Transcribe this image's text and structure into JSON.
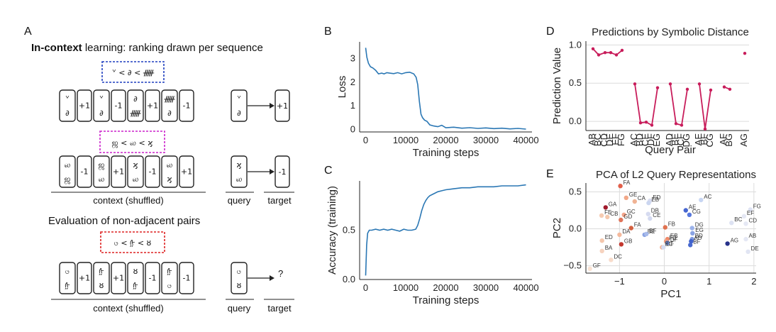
{
  "panel_a": {
    "letter": "A",
    "heading_bold": "In-context",
    "heading_rest": " learning: ranking drawn per sequence",
    "seq1": {
      "ranking": "ᘁ < ∂ < ᚏ",
      "cards": [
        {
          "top": "ᘁ",
          "bottom": "∂",
          "kind": "pair"
        },
        {
          "text": "+1",
          "kind": "label"
        },
        {
          "top": "ᘁ",
          "bottom": "∂",
          "kind": "pair"
        },
        {
          "text": "-1",
          "kind": "label"
        },
        {
          "top": "∂",
          "bottom": "ᚏ",
          "kind": "pair"
        },
        {
          "text": "+1",
          "kind": "label"
        },
        {
          "top": "ᚏ",
          "bottom": "∂",
          "kind": "pair"
        },
        {
          "text": "-1",
          "kind": "label"
        }
      ],
      "query_top": "ᘁ",
      "query_bottom": "∂",
      "target": "+1"
    },
    "seq2": {
      "ranking": "ஜ < ல < ϗ",
      "cards": [
        {
          "top": "ல",
          "bottom": "ஜ",
          "kind": "pair"
        },
        {
          "text": "-1",
          "kind": "label"
        },
        {
          "top": "ஜ",
          "bottom": "ல",
          "kind": "pair"
        },
        {
          "text": "+1",
          "kind": "label"
        },
        {
          "top": "ϗ",
          "bottom": "ல",
          "kind": "pair"
        },
        {
          "text": "-1",
          "kind": "label"
        },
        {
          "top": "ல",
          "bottom": "ϗ",
          "kind": "pair"
        },
        {
          "text": "+1",
          "kind": "label"
        }
      ],
      "query_top": "ϗ",
      "query_bottom": "ல",
      "target": "-1"
    },
    "context_label": "context (shuffled)",
    "query_label": "query",
    "target_label": "target",
    "eval_heading": "Evaluation of non-adjacent pairs",
    "seq3": {
      "ranking": "ၒ < ᢔ < ȣ",
      "cards": [
        {
          "top": "ၒ",
          "bottom": "ᢔ",
          "kind": "pair"
        },
        {
          "text": "+1",
          "kind": "label"
        },
        {
          "top": "ᢔ",
          "bottom": "ȣ",
          "kind": "pair"
        },
        {
          "text": "+1",
          "kind": "label"
        },
        {
          "top": "ȣ",
          "bottom": "ᢔ",
          "kind": "pair"
        },
        {
          "text": "-1",
          "kind": "label"
        },
        {
          "top": "ᢔ",
          "bottom": "ၒ",
          "kind": "pair"
        },
        {
          "text": "-1",
          "kind": "label"
        }
      ],
      "query_top": "ၒ",
      "query_bottom": "ȣ",
      "target": "?"
    },
    "colors": {
      "seq1": "#1f3fbf",
      "seq2": "#cc22cc",
      "seq3": "#dd2222"
    }
  },
  "chart_data": [
    {
      "id": "B",
      "type": "line",
      "letter": "B",
      "xlabel": "Training steps",
      "ylabel": "Loss",
      "xlim": [
        -1500,
        41500
      ],
      "ylim": [
        -0.1,
        3.7
      ],
      "xticks": [
        0,
        10000,
        20000,
        30000,
        40000
      ],
      "xtick_labels": [
        "0",
        "10000",
        "20000",
        "30000",
        "40000"
      ],
      "yticks": [
        0,
        1,
        2,
        3
      ],
      "ytick_labels": [
        "0",
        "1",
        "2",
        "3"
      ],
      "color": "#2a77b4",
      "x": [
        0,
        300,
        700,
        1200,
        1800,
        2500,
        3200,
        4000,
        4600,
        5300,
        6000,
        7000,
        8000,
        9000,
        10000,
        11000,
        12000,
        12600,
        13000,
        13400,
        13800,
        14200,
        14700,
        15300,
        16000,
        17000,
        18000,
        19000,
        20000,
        22000,
        24000,
        26000,
        28000,
        30000,
        32000,
        34000,
        36000,
        38000,
        40000
      ],
      "y": [
        3.45,
        3.05,
        2.8,
        2.65,
        2.6,
        2.5,
        2.35,
        2.38,
        2.35,
        2.4,
        2.38,
        2.36,
        2.4,
        2.35,
        2.4,
        2.42,
        2.35,
        2.2,
        1.9,
        1.2,
        0.65,
        0.5,
        0.4,
        0.35,
        0.2,
        0.15,
        0.12,
        0.18,
        0.08,
        0.1,
        0.06,
        0.08,
        0.05,
        0.07,
        0.04,
        0.06,
        0.03,
        0.05,
        0.02
      ]
    },
    {
      "id": "C",
      "type": "line",
      "letter": "C",
      "xlabel": "Training steps",
      "ylabel": "Accuracy (training)",
      "xlim": [
        -1500,
        41500
      ],
      "ylim": [
        0.0,
        1.0
      ],
      "xticks": [
        0,
        10000,
        20000,
        30000,
        40000
      ],
      "xtick_labels": [
        "0",
        "10000",
        "20000",
        "30000",
        "40000"
      ],
      "yticks": [
        0.0,
        0.5
      ],
      "ytick_labels": [
        "0.0",
        "0.5"
      ],
      "color": "#2a77b4",
      "x": [
        0,
        250,
        500,
        900,
        1500,
        2500,
        3500,
        4500,
        5500,
        6500,
        7500,
        8500,
        9500,
        10500,
        11500,
        12500,
        13000,
        13500,
        14000,
        14500,
        15000,
        15500,
        16000,
        17000,
        18000,
        19000,
        20000,
        22000,
        24000,
        26000,
        28000,
        30000,
        32000,
        34000,
        36000,
        38000,
        40000
      ],
      "y": [
        0.04,
        0.35,
        0.47,
        0.5,
        0.5,
        0.51,
        0.5,
        0.51,
        0.5,
        0.51,
        0.5,
        0.49,
        0.51,
        0.5,
        0.5,
        0.51,
        0.55,
        0.62,
        0.7,
        0.76,
        0.8,
        0.83,
        0.85,
        0.87,
        0.89,
        0.9,
        0.91,
        0.92,
        0.93,
        0.93,
        0.94,
        0.94,
        0.94,
        0.95,
        0.95,
        0.95,
        0.96
      ]
    },
    {
      "id": "D",
      "type": "line",
      "letter": "D",
      "title": "Predictions by Symbolic Distance",
      "xlabel": "Query Pair",
      "ylabel": "Prediction Value",
      "ylim": [
        -0.12,
        1.05
      ],
      "yticks": [
        0.0,
        0.5,
        1.0
      ],
      "ytick_labels": [
        "0.0",
        "0.5",
        "1.0"
      ],
      "color": "#c81d5b",
      "categories": [
        "AB",
        "BC",
        "CD",
        "DE",
        "EF",
        "FG",
        "AC",
        "BD",
        "CE",
        "DF",
        "EG",
        "AD",
        "BE",
        "CF",
        "DG",
        "AE",
        "BF",
        "CG",
        "AF",
        "BG",
        "AG"
      ],
      "values": [
        0.95,
        0.87,
        0.9,
        0.9,
        0.87,
        0.93,
        0.49,
        -0.02,
        -0.01,
        -0.05,
        0.44,
        0.49,
        -0.03,
        -0.05,
        0.42,
        0.49,
        -0.1,
        0.41,
        0.45,
        0.42,
        0.89
      ],
      "segments": [
        [
          0,
          5
        ],
        [
          6,
          10
        ],
        [
          11,
          14
        ],
        [
          15,
          17
        ],
        [
          18,
          19
        ],
        [
          20,
          20
        ]
      ]
    },
    {
      "id": "E",
      "type": "scatter",
      "letter": "E",
      "title": "PCA of L2 Query Representations",
      "xlabel": "PC1",
      "ylabel": "PC2",
      "xlim": [
        -1.75,
        2.05
      ],
      "ylim": [
        -0.6,
        0.62
      ],
      "xticks": [
        -1,
        0,
        1,
        2
      ],
      "xtick_labels": [
        "−1",
        "0",
        "1",
        "2"
      ],
      "yticks": [
        -0.5,
        0.0,
        0.5
      ],
      "ytick_labels": [
        "−0.5",
        "0.0",
        "0.5"
      ],
      "points": [
        {
          "label": "FA",
          "x": -0.98,
          "y": 0.58,
          "color": "#e25f4a"
        },
        {
          "label": "GE",
          "x": -0.85,
          "y": 0.42,
          "color": "#f2a888"
        },
        {
          "label": "CA",
          "x": -0.66,
          "y": 0.37,
          "color": "#f0b394"
        },
        {
          "label": "ED",
          "x": -0.32,
          "y": 0.38,
          "color": "#d8dcef"
        },
        {
          "label": "EB",
          "x": -0.35,
          "y": 0.35,
          "color": "#cbd6f0"
        },
        {
          "label": "AC",
          "x": 0.82,
          "y": 0.39,
          "color": "#c8d6f3"
        },
        {
          "label": "GA",
          "x": -1.31,
          "y": 0.29,
          "color": "#a01a2c"
        },
        {
          "label": "AE",
          "x": 0.48,
          "y": 0.25,
          "color": "#4666d0"
        },
        {
          "label": "FG",
          "x": 1.92,
          "y": 0.26,
          "color": "#dde2f2"
        },
        {
          "label": "CG",
          "x": 0.56,
          "y": 0.19,
          "color": "#5677dd"
        },
        {
          "label": "FE",
          "x": -1.4,
          "y": 0.18,
          "color": "#f5cbb2"
        },
        {
          "label": "CB",
          "x": -1.27,
          "y": 0.16,
          "color": "#f4c8ad"
        },
        {
          "label": "GC",
          "x": -0.9,
          "y": 0.19,
          "color": "#f3a58b"
        },
        {
          "label": "DB",
          "x": -0.36,
          "y": 0.2,
          "color": "#d6dbf0"
        },
        {
          "label": "EF",
          "x": 1.78,
          "y": 0.17,
          "color": "#e5e8f4"
        },
        {
          "label": "GD",
          "x": -0.97,
          "y": 0.12,
          "color": "#e0745a"
        },
        {
          "label": "CE",
          "x": -0.32,
          "y": 0.14,
          "color": "#d3d9f0"
        },
        {
          "label": "BC",
          "x": 1.5,
          "y": 0.08,
          "color": "#dde2f2"
        },
        {
          "label": "CD",
          "x": 1.82,
          "y": 0.07,
          "color": "#e5e8f4"
        },
        {
          "label": "FA",
          "x": -0.74,
          "y": 0.01,
          "color": "#d4603f"
        },
        {
          "label": "FB",
          "x": 0.02,
          "y": 0.02,
          "color": "#e0724f"
        },
        {
          "label": "DG",
          "x": 0.62,
          "y": 0.01,
          "color": "#9bb2ea"
        },
        {
          "label": "DA",
          "x": -1.0,
          "y": -0.08,
          "color": "#f5b99c"
        },
        {
          "label": "BE",
          "x": -0.44,
          "y": -0.08,
          "color": "#8aa3e3"
        },
        {
          "label": "BF",
          "x": -0.4,
          "y": -0.07,
          "color": "#a8bbeb"
        },
        {
          "label": "EG",
          "x": 0.63,
          "y": -0.06,
          "color": "#8aa3e3"
        },
        {
          "label": "AB",
          "x": 1.82,
          "y": -0.14,
          "color": "#e5e8f4"
        },
        {
          "label": "EB",
          "x": 0.07,
          "y": -0.14,
          "color": "#ef8a6a"
        },
        {
          "label": "BD",
          "x": 0.62,
          "y": -0.14,
          "color": "#7f99e0"
        },
        {
          "label": "FD",
          "x": 0.04,
          "y": -0.17,
          "color": "#f09c7d"
        },
        {
          "label": "DF",
          "x": 0.07,
          "y": -0.19,
          "color": "#6f8cdc"
        },
        {
          "label": "AD",
          "x": 0.6,
          "y": -0.17,
          "color": "#4062cc"
        },
        {
          "label": "BF",
          "x": 0.58,
          "y": -0.22,
          "color": "#4869cf"
        },
        {
          "label": "AG",
          "x": 1.41,
          "y": -0.2,
          "color": "#26318a"
        },
        {
          "label": "ED",
          "x": -1.39,
          "y": -0.16,
          "color": "#f4c7ad"
        },
        {
          "label": "GB",
          "x": -0.96,
          "y": -0.21,
          "color": "#c3382f"
        },
        {
          "label": "EC",
          "x": -0.05,
          "y": -0.25,
          "color": "#f3b194"
        },
        {
          "label": "CF",
          "x": -0.02,
          "y": -0.25,
          "color": "#d4dbf2"
        },
        {
          "label": "BA",
          "x": -1.39,
          "y": -0.3,
          "color": "#f6d3bf"
        },
        {
          "label": "DE",
          "x": 1.87,
          "y": -0.31,
          "color": "#e1e5f3"
        },
        {
          "label": "DC",
          "x": -1.19,
          "y": -0.42,
          "color": "#f8dccb"
        },
        {
          "label": "GF",
          "x": -1.66,
          "y": -0.54,
          "color": "#f9e2d3"
        }
      ]
    }
  ]
}
